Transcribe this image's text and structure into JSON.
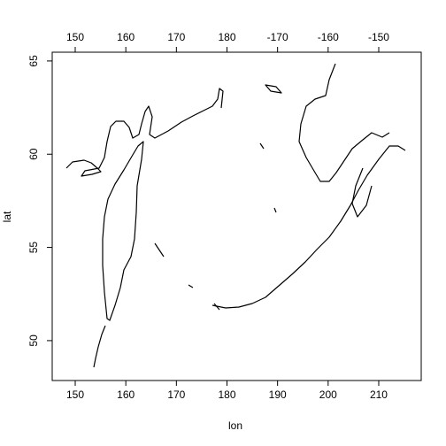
{
  "chart_data": {
    "type": "map",
    "xlabel": "lon",
    "ylabel": "lat",
    "xlim": [
      145.45,
      218.4
    ],
    "ylim": [
      47.86,
      65.47
    ],
    "xticks": [
      150,
      160,
      170,
      180,
      190,
      200,
      210
    ],
    "x2ticks": [
      150,
      160,
      170,
      180,
      {
        "value": 190,
        "label": "-170"
      },
      {
        "value": 200,
        "label": "-160"
      },
      {
        "value": 210,
        "label": "-150"
      }
    ],
    "yticks": [
      50,
      55,
      60,
      65
    ]
  }
}
